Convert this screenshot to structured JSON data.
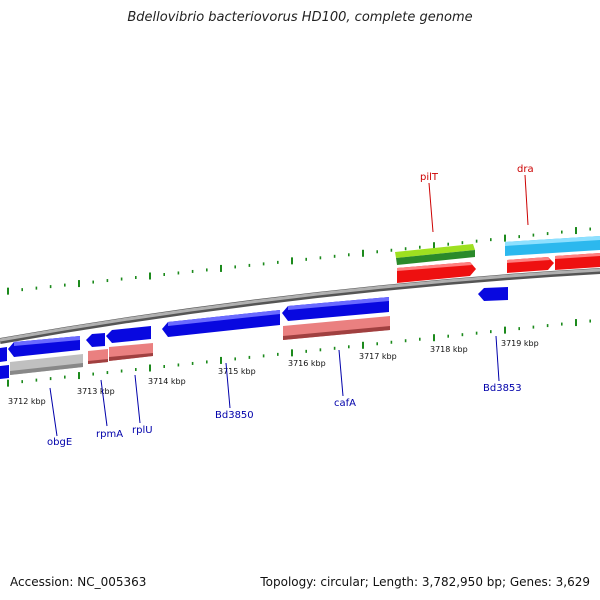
{
  "title": "Bdellovibrio bacteriovorus HD100, complete genome",
  "footer": {
    "accession": "Accession: NC_005363",
    "summary": "Topology: circular; Length: 3,782,950 bp; Genes: 3,629"
  },
  "colors": {
    "backbone": "#8a8a8a",
    "tick": "#1c8a1c",
    "blue": "#0808e0",
    "red": "#ee1010",
    "salmon": "#ea8080",
    "grey": "#c0c0c0",
    "cyan": "#2cb8ee",
    "lime": "#9ee020",
    "green": "#2a8a2a",
    "label_blue": "#0000aa",
    "label_red": "#cc0000"
  },
  "scale": {
    "ticks": [
      "3712 kbp",
      "3713 kbp",
      "3714 kbp",
      "3715 kbp",
      "3716 kbp",
      "3717 kbp",
      "3718 kbp",
      "3719 kbp"
    ]
  },
  "genes": {
    "obgE": "obgE",
    "rpmA": "rpmA",
    "rplU": "rplU",
    "Bd3850": "Bd3850",
    "cafA": "cafA",
    "Bd3853": "Bd3853",
    "pilT": "pilT",
    "dra": "dra"
  }
}
